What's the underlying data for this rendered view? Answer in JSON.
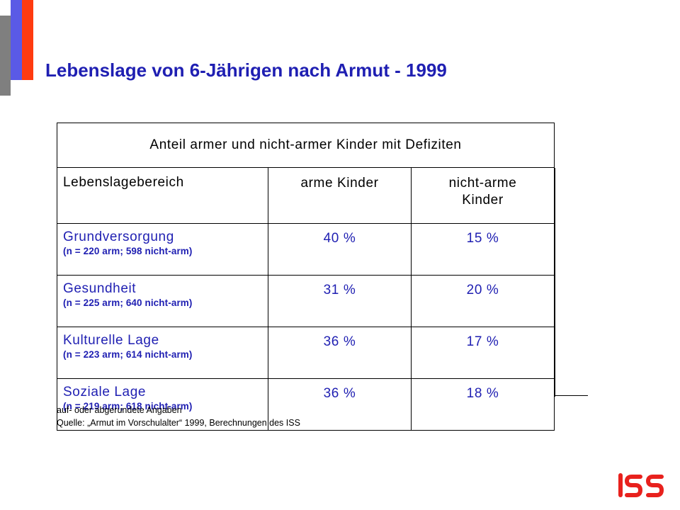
{
  "title": "Lebenslage von 6-Jährigen nach Armut - 1999",
  "table": {
    "caption": "Anteil armer und nicht-armer Kinder mit Defiziten",
    "columns": [
      "Lebenslagebereich",
      "arme Kinder",
      "nicht-arme Kinder"
    ],
    "column3_lines": [
      "nicht-arme",
      "Kinder"
    ],
    "rows": [
      {
        "name": "Grundversorgung",
        "n": "(n = 220 arm; 598 nicht-arm)",
        "arm": "40 %",
        "nicht_arm": "15 %"
      },
      {
        "name": "Gesundheit",
        "n": "(n = 225 arm; 640 nicht-arm)",
        "arm": "31 %",
        "nicht_arm": "20 %"
      },
      {
        "name": "Kulturelle Lage",
        "n": "(n  = 223 arm; 614 nicht-arm)",
        "arm": "36 %",
        "nicht_arm": "17 %"
      },
      {
        "name": "Soziale Lage",
        "n": "(n = 219 arm; 618 nicht-arm)",
        "arm": "36 %",
        "nicht_arm": "18 %"
      }
    ]
  },
  "notes": [
    "auf- oder abgerundete Angaben",
    "Quelle: „Armut im Vorschulalter“ 1999, Berechnungen des ISS"
  ],
  "logo": {
    "text": "ISS",
    "color": "#e8211d"
  },
  "colors": {
    "title": "#1f1fb2",
    "accent_red": "#ff3b10",
    "accent_blue": "#5a5ae6",
    "accent_gray": "#7f7f7f"
  }
}
